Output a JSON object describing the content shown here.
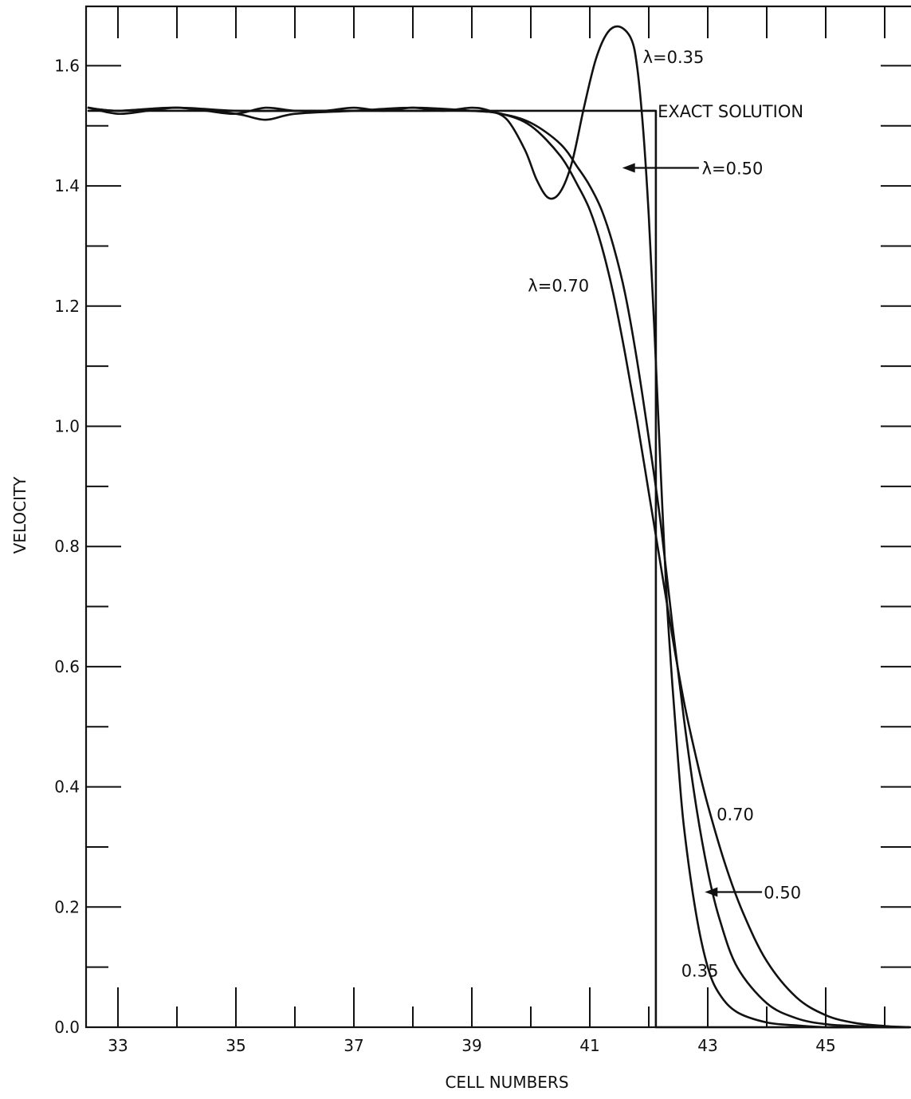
{
  "chart_data": {
    "type": "line",
    "title": "",
    "xlabel": "CELL NUMBERS",
    "ylabel": "VELOCITY",
    "xlim": [
      32.5,
      46.5
    ],
    "ylim": [
      0.0,
      1.7
    ],
    "x_ticks": [
      33,
      35,
      37,
      39,
      41,
      43,
      45
    ],
    "x_tick_labels": [
      "33",
      "35",
      "37",
      "39",
      "41",
      "43",
      "45"
    ],
    "x_minor_ticks": [
      34,
      36,
      38,
      40,
      42,
      44,
      46
    ],
    "y_ticks": [
      0.0,
      0.2,
      0.4,
      0.6,
      0.8,
      1.0,
      1.2,
      1.4,
      1.6
    ],
    "y_tick_labels": [
      "0.0",
      "0.2",
      "0.4",
      "0.6",
      "0.8",
      "1.0",
      "1.2",
      "1.4",
      "1.6"
    ],
    "y_minor_ticks": [
      0.1,
      0.3,
      0.5,
      0.7,
      0.9,
      1.1,
      1.3,
      1.5
    ],
    "grid": false,
    "series": [
      {
        "name": "EXACT SOLUTION",
        "x": [
          32.5,
          41.95,
          41.95,
          42.12,
          42.12,
          46.5
        ],
        "y": [
          1.525,
          1.525,
          1.525,
          1.525,
          0.0,
          0.0
        ]
      },
      {
        "name": "λ=0.35",
        "x": [
          32.5,
          33.0,
          33.5,
          34.0,
          34.5,
          35.0,
          35.5,
          36.0,
          36.5,
          37.0,
          37.5,
          38.0,
          38.5,
          39.0,
          39.3,
          39.6,
          39.9,
          40.1,
          40.3,
          40.5,
          40.7,
          40.9,
          41.1,
          41.3,
          41.5,
          41.7,
          41.8,
          41.9,
          42.0,
          42.1,
          42.2,
          42.3,
          42.4,
          42.5,
          42.6,
          42.8,
          43.0,
          43.2,
          43.5,
          44.0,
          44.5,
          45.0,
          45.5,
          46.0,
          46.5
        ],
        "y": [
          1.53,
          1.52,
          1.525,
          1.53,
          1.525,
          1.52,
          1.53,
          1.525,
          1.525,
          1.53,
          1.525,
          1.53,
          1.525,
          1.53,
          1.525,
          1.51,
          1.46,
          1.41,
          1.38,
          1.39,
          1.44,
          1.53,
          1.61,
          1.655,
          1.665,
          1.645,
          1.6,
          1.5,
          1.35,
          1.15,
          0.93,
          0.72,
          0.57,
          0.44,
          0.33,
          0.19,
          0.1,
          0.055,
          0.025,
          0.008,
          0.003,
          0.0,
          0.0,
          0.0,
          0.0
        ]
      },
      {
        "name": "λ=0.50",
        "x": [
          32.5,
          33.0,
          34.0,
          35.0,
          36.0,
          37.0,
          38.0,
          39.0,
          39.5,
          40.0,
          40.5,
          40.8,
          41.0,
          41.2,
          41.4,
          41.6,
          41.8,
          42.0,
          42.2,
          42.4,
          42.6,
          42.8,
          43.0,
          43.2,
          43.5,
          44.0,
          44.5,
          45.0,
          45.5,
          46.0,
          46.5
        ],
        "y": [
          1.53,
          1.525,
          1.53,
          1.525,
          1.525,
          1.525,
          1.525,
          1.525,
          1.52,
          1.505,
          1.47,
          1.43,
          1.4,
          1.36,
          1.3,
          1.22,
          1.11,
          0.98,
          0.84,
          0.67,
          0.51,
          0.37,
          0.26,
          0.18,
          0.1,
          0.04,
          0.015,
          0.005,
          0.002,
          0.0,
          0.0
        ]
      },
      {
        "name": "λ=0.70",
        "x": [
          32.5,
          33.0,
          34.0,
          35.0,
          35.5,
          36.0,
          37.0,
          38.0,
          39.0,
          39.5,
          40.0,
          40.5,
          40.8,
          41.0,
          41.2,
          41.4,
          41.6,
          41.8,
          42.0,
          42.2,
          42.4,
          42.6,
          42.8,
          43.0,
          43.3,
          43.6,
          44.0,
          44.5,
          45.0,
          45.5,
          46.0,
          46.5
        ],
        "y": [
          1.53,
          1.525,
          1.53,
          1.52,
          1.51,
          1.52,
          1.525,
          1.53,
          1.525,
          1.52,
          1.5,
          1.45,
          1.4,
          1.36,
          1.3,
          1.22,
          1.12,
          1.01,
          0.89,
          0.77,
          0.65,
          0.54,
          0.45,
          0.37,
          0.27,
          0.19,
          0.11,
          0.05,
          0.02,
          0.007,
          0.002,
          0.0
        ]
      }
    ],
    "annotations": [
      {
        "text": "λ=0.35",
        "x": 41.9,
        "y": 1.615
      },
      {
        "text": "EXACT SOLUTION",
        "x": 42.15,
        "y": 1.525
      },
      {
        "text": "λ=0.50",
        "x": 42.9,
        "y": 1.43
      },
      {
        "text": "λ=0.70",
        "x": 39.95,
        "y": 1.235
      },
      {
        "text": "0.70",
        "x": 43.15,
        "y": 0.355
      },
      {
        "text": "0.50",
        "x": 43.95,
        "y": 0.225
      },
      {
        "text": "0.35",
        "x": 42.55,
        "y": 0.095
      }
    ]
  }
}
